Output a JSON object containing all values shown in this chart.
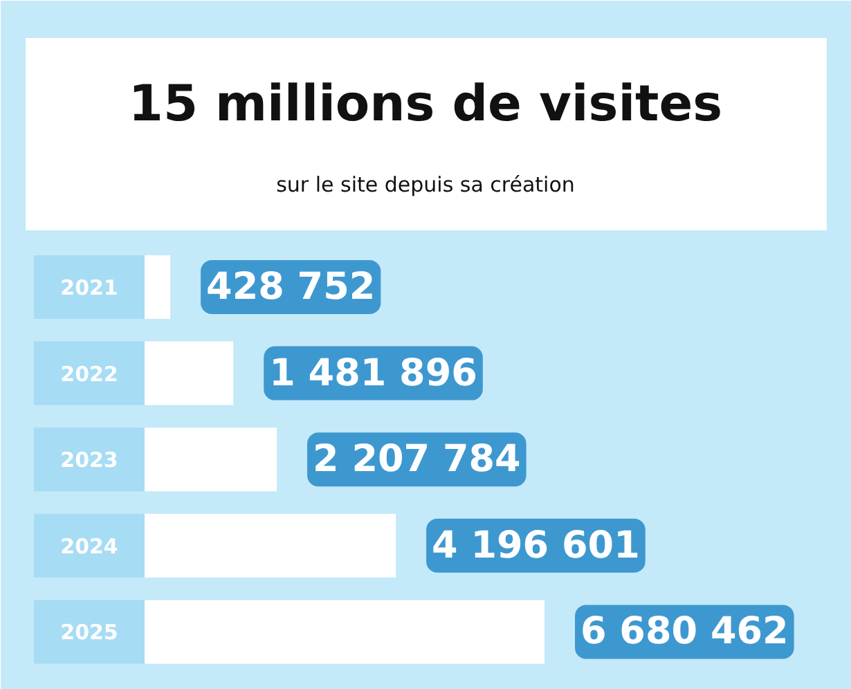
{
  "chart_data": {
    "type": "bar",
    "orientation": "horizontal",
    "title": "15 millions de visites",
    "subtitle": "sur le site depuis sa création",
    "categories": [
      "2021",
      "2022",
      "2023",
      "2024",
      "2025"
    ],
    "values": [
      428752,
      1481896,
      2207784,
      4196601,
      6680462
    ],
    "value_labels": [
      "428 752",
      "1 481 896",
      "2 207 784",
      "4 196 601",
      "6 680 462"
    ],
    "color": "#ffffff"
  }
}
